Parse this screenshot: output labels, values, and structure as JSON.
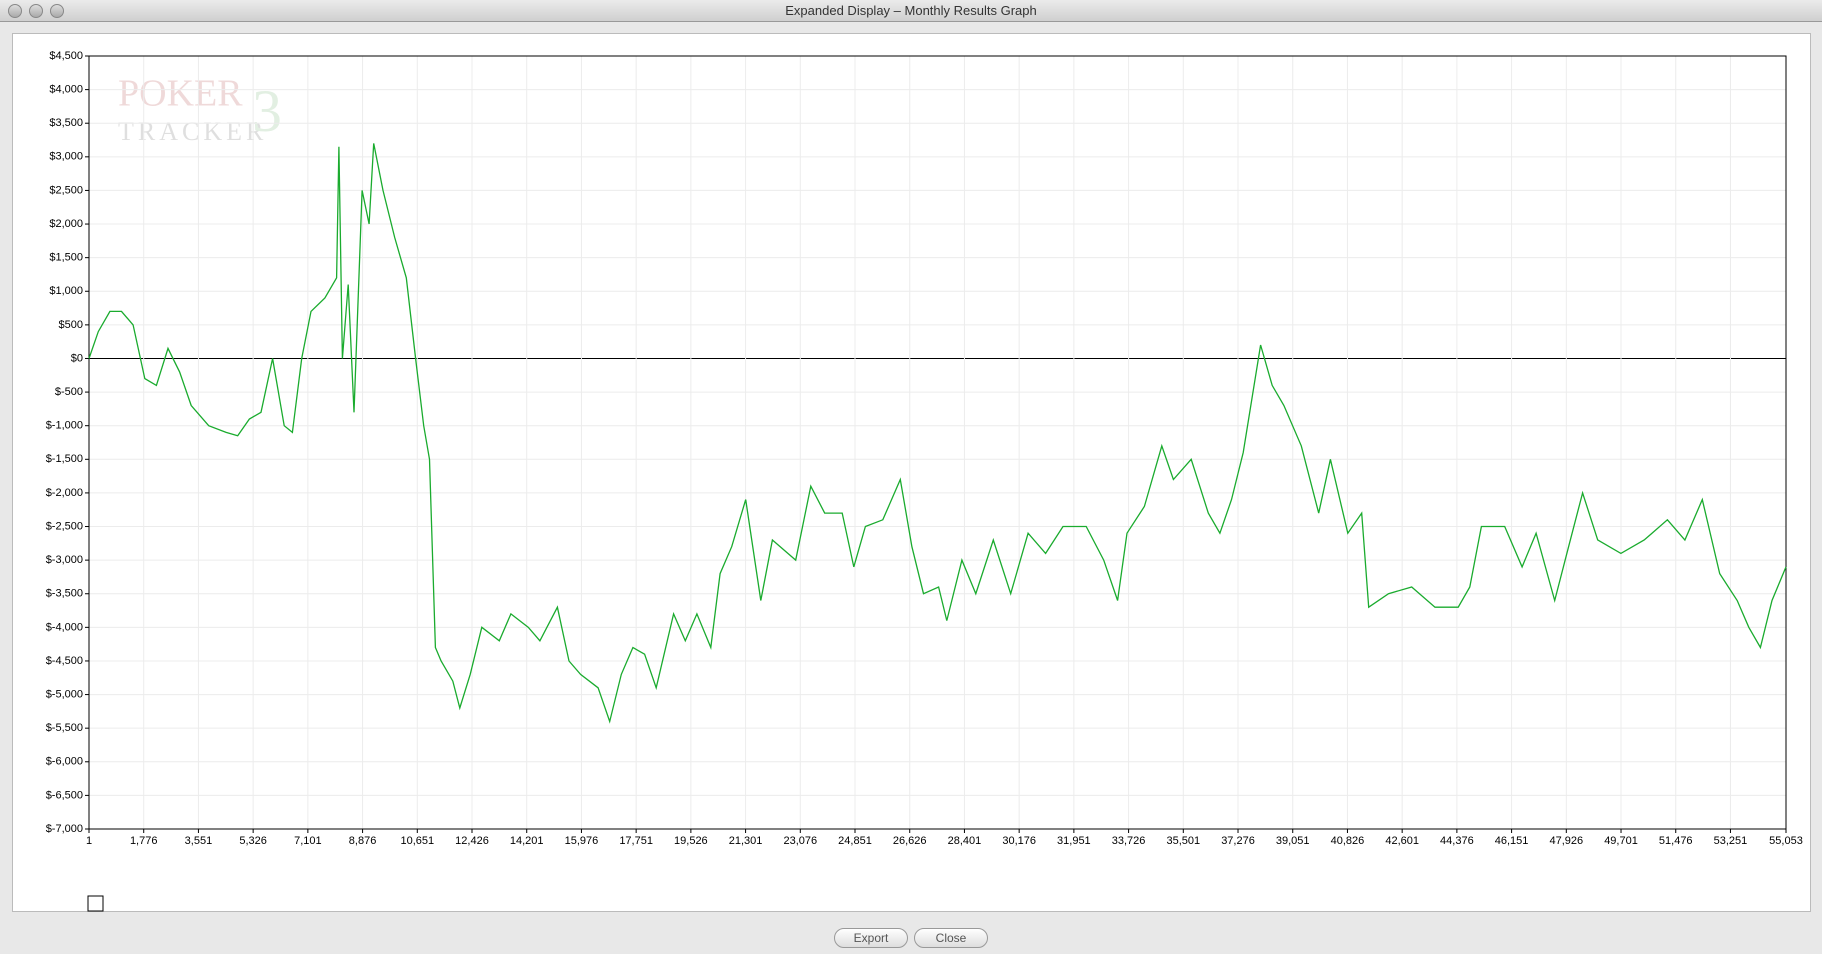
{
  "window_title": "Expanded Display – Monthly Results Graph",
  "buttons": [
    "Export",
    "Close"
  ],
  "watermark": [
    "POKER",
    "TRACKER",
    "3"
  ],
  "chart_data": {
    "type": "line",
    "color": "#1aab2e",
    "grid": true,
    "xlim": [
      1,
      55053
    ],
    "ylim": [
      -7000,
      4500
    ],
    "xticks": [
      1,
      {
        "value": 1776,
        "label": "1,776"
      },
      {
        "value": 3551,
        "label": "3,551"
      },
      {
        "value": 5326,
        "label": "5,326"
      },
      {
        "value": 7101,
        "label": "7,101"
      },
      {
        "value": 8876,
        "label": "8,876"
      },
      {
        "value": 10651,
        "label": "10,651"
      },
      {
        "value": 12426,
        "label": "12,426"
      },
      {
        "value": 14201,
        "label": "14,201"
      },
      {
        "value": 15976,
        "label": "15,976"
      },
      {
        "value": 17751,
        "label": "17,751"
      },
      {
        "value": 19526,
        "label": "19,526"
      },
      {
        "value": 21301,
        "label": "21,301"
      },
      {
        "value": 23076,
        "label": "23,076"
      },
      {
        "value": 24851,
        "label": "24,851"
      },
      {
        "value": 26626,
        "label": "26,626"
      },
      {
        "value": 28401,
        "label": "28,401"
      },
      {
        "value": 30176,
        "label": "30,176"
      },
      {
        "value": 31951,
        "label": "31,951"
      },
      {
        "value": 33726,
        "label": "33,726"
      },
      {
        "value": 35501,
        "label": "35,501"
      },
      {
        "value": 37276,
        "label": "37,276"
      },
      {
        "value": 39051,
        "label": "39,051"
      },
      {
        "value": 40826,
        "label": "40,826"
      },
      {
        "value": 42601,
        "label": "42,601"
      },
      {
        "value": 44376,
        "label": "44,376"
      },
      {
        "value": 46151,
        "label": "46,151"
      },
      {
        "value": 47926,
        "label": "47,926"
      },
      {
        "value": 49701,
        "label": "49,701"
      },
      {
        "value": 51476,
        "label": "51,476"
      },
      {
        "value": 53251,
        "label": "53,251"
      },
      {
        "value": 55053,
        "label": "55,053"
      }
    ],
    "yticks": [
      {
        "value": 4500,
        "label": "$4,500"
      },
      {
        "value": 4000,
        "label": "$4,000"
      },
      {
        "value": 3500,
        "label": "$3,500"
      },
      {
        "value": 3000,
        "label": "$3,000"
      },
      {
        "value": 2500,
        "label": "$2,500"
      },
      {
        "value": 2000,
        "label": "$2,000"
      },
      {
        "value": 1500,
        "label": "$1,500"
      },
      {
        "value": 1000,
        "label": "$1,000"
      },
      {
        "value": 500,
        "label": "$500"
      },
      {
        "value": 0,
        "label": "$0"
      },
      {
        "value": -500,
        "label": "$-500"
      },
      {
        "value": -1000,
        "label": "$-1,000"
      },
      {
        "value": -1500,
        "label": "$-1,500"
      },
      {
        "value": -2000,
        "label": "$-2,000"
      },
      {
        "value": -2500,
        "label": "$-2,500"
      },
      {
        "value": -3000,
        "label": "$-3,000"
      },
      {
        "value": -3500,
        "label": "$-3,500"
      },
      {
        "value": -4000,
        "label": "$-4,000"
      },
      {
        "value": -4500,
        "label": "$-4,500"
      },
      {
        "value": -5000,
        "label": "$-5,000"
      },
      {
        "value": -5500,
        "label": "$-5,500"
      },
      {
        "value": -6000,
        "label": "$-6,000"
      },
      {
        "value": -6500,
        "label": "$-6,500"
      },
      {
        "value": -7000,
        "label": "$-7,000"
      }
    ],
    "x": [
      1,
      302,
      679,
      1056,
      1433,
      1810,
      2187,
      2564,
      2941,
      3318,
      3884,
      4449,
      4826,
      5204,
      5581,
      5958,
      6335,
      6599,
      6900,
      7202,
      7655,
      8032,
      8107,
      8220,
      8409,
      8597,
      8861,
      9087,
      9238,
      9540,
      9917,
      10294,
      10596,
      10860,
      11048,
      11237,
      11425,
      11802,
      12029,
      12368,
      12745,
      13310,
      13688,
      14253,
      14630,
      15196,
      15573,
      15950,
      16516,
      16893,
      17270,
      17647,
      18024,
      18401,
      18967,
      19344,
      19721,
      20173,
      20475,
      20852,
      21304,
      21794,
      22172,
      22926,
      23416,
      23868,
      24434,
      24811,
      25188,
      25754,
      26319,
      26696,
      27074,
      27564,
      27828,
      28318,
      28770,
      29336,
      29902,
      30467,
      31033,
      31598,
      32352,
      32918,
      33371,
      33673,
      34239,
      34804,
      35181,
      35758,
      36312,
      36689,
      37066,
      37444,
      38009,
      38386,
      38763,
      39329,
      39894,
      40272,
      40837,
      41289,
      41516,
      42157,
      42911,
      43665,
      44419,
      44796,
      45173,
      45927,
      46493,
      46945,
      47549,
      48001,
      48453,
      48944,
      49698,
      50452,
      51206,
      51772,
      52337,
      52903,
      53469,
      53846,
      54223,
      54600,
      55053
    ],
    "values": [
      0,
      400,
      700,
      700,
      500,
      -300,
      -400,
      150,
      -200,
      -700,
      -1000,
      -1100,
      -1150,
      -900,
      -800,
      0,
      -1000,
      -1100,
      0,
      700,
      900,
      1200,
      3150,
      0,
      1100,
      -800,
      2500,
      2000,
      3200,
      2500,
      1800,
      1200,
      0,
      -1000,
      -1500,
      -4300,
      -4500,
      -4800,
      -5200,
      -4700,
      -4000,
      -4200,
      -3800,
      -4000,
      -4200,
      -3700,
      -4500,
      -4700,
      -4900,
      -5400,
      -4700,
      -4300,
      -4400,
      -4900,
      -3800,
      -4200,
      -3800,
      -4300,
      -3200,
      -2800,
      -2100,
      -3600,
      -2700,
      -3000,
      -1900,
      -2300,
      -2300,
      -3100,
      -2500,
      -2400,
      -1800,
      -2800,
      -3500,
      -3400,
      -3900,
      -3000,
      -3500,
      -2700,
      -3500,
      -2600,
      -2900,
      -2500,
      -2500,
      -3000,
      -3600,
      -2600,
      -2200,
      -1300,
      -1800,
      -1500,
      -2300,
      -2600,
      -2100,
      -1400,
      200,
      -400,
      -700,
      -1300,
      -2300,
      -1500,
      -2600,
      -2300,
      -3700,
      -3500,
      -3400,
      -3700,
      -3700,
      -3400,
      -2500,
      -2500,
      -3100,
      -2600,
      -3600,
      -2800,
      -2000,
      -2700,
      -2900,
      -2700,
      -2400,
      -2700,
      -2100,
      -3200,
      -3600,
      -4000,
      -4300,
      -3600,
      -3100
    ]
  }
}
